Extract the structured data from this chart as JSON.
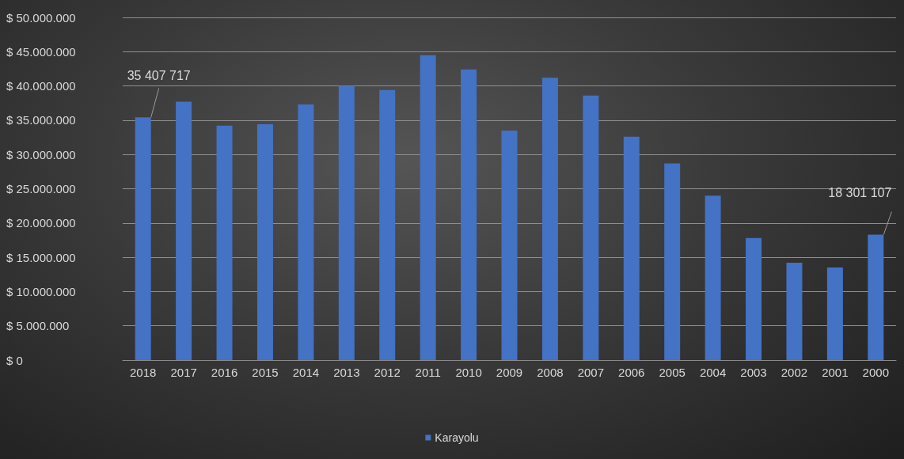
{
  "chart_data": {
    "type": "bar",
    "categories": [
      "2018",
      "2017",
      "2016",
      "2015",
      "2014",
      "2013",
      "2012",
      "2011",
      "2010",
      "2009",
      "2008",
      "2007",
      "2006",
      "2005",
      "2004",
      "2003",
      "2002",
      "2001",
      "2000"
    ],
    "series": [
      {
        "name": "Karayolu",
        "color": "#4472c4",
        "values": [
          35407717,
          37700000,
          34200000,
          34400000,
          37300000,
          40000000,
          39400000,
          44500000,
          42400000,
          33500000,
          41200000,
          38600000,
          32600000,
          28700000,
          24000000,
          17800000,
          14200000,
          13500000,
          18301107
        ],
        "value_labels": [
          "35 407 717",
          null,
          null,
          null,
          null,
          null,
          null,
          null,
          null,
          null,
          null,
          null,
          null,
          null,
          null,
          null,
          null,
          null,
          "18 301 107"
        ]
      }
    ],
    "ylim": [
      0,
      50000000
    ],
    "yticks": [
      {
        "value": 0,
        "label": "$ 0"
      },
      {
        "value": 5000000,
        "label": "$ 5.000.000"
      },
      {
        "value": 10000000,
        "label": "$ 10.000.000"
      },
      {
        "value": 15000000,
        "label": "$ 15.000.000"
      },
      {
        "value": 20000000,
        "label": "$ 20.000.000"
      },
      {
        "value": 25000000,
        "label": "$ 25.000.000"
      },
      {
        "value": 30000000,
        "label": "$ 30.000.000"
      },
      {
        "value": 35000000,
        "label": "$ 35.000.000"
      },
      {
        "value": 40000000,
        "label": "$ 40.000.000"
      },
      {
        "value": 45000000,
        "label": "$ 45.000.000"
      },
      {
        "value": 50000000,
        "label": "$ 50.000.000"
      }
    ],
    "grid": "y",
    "legend": "bottom"
  }
}
